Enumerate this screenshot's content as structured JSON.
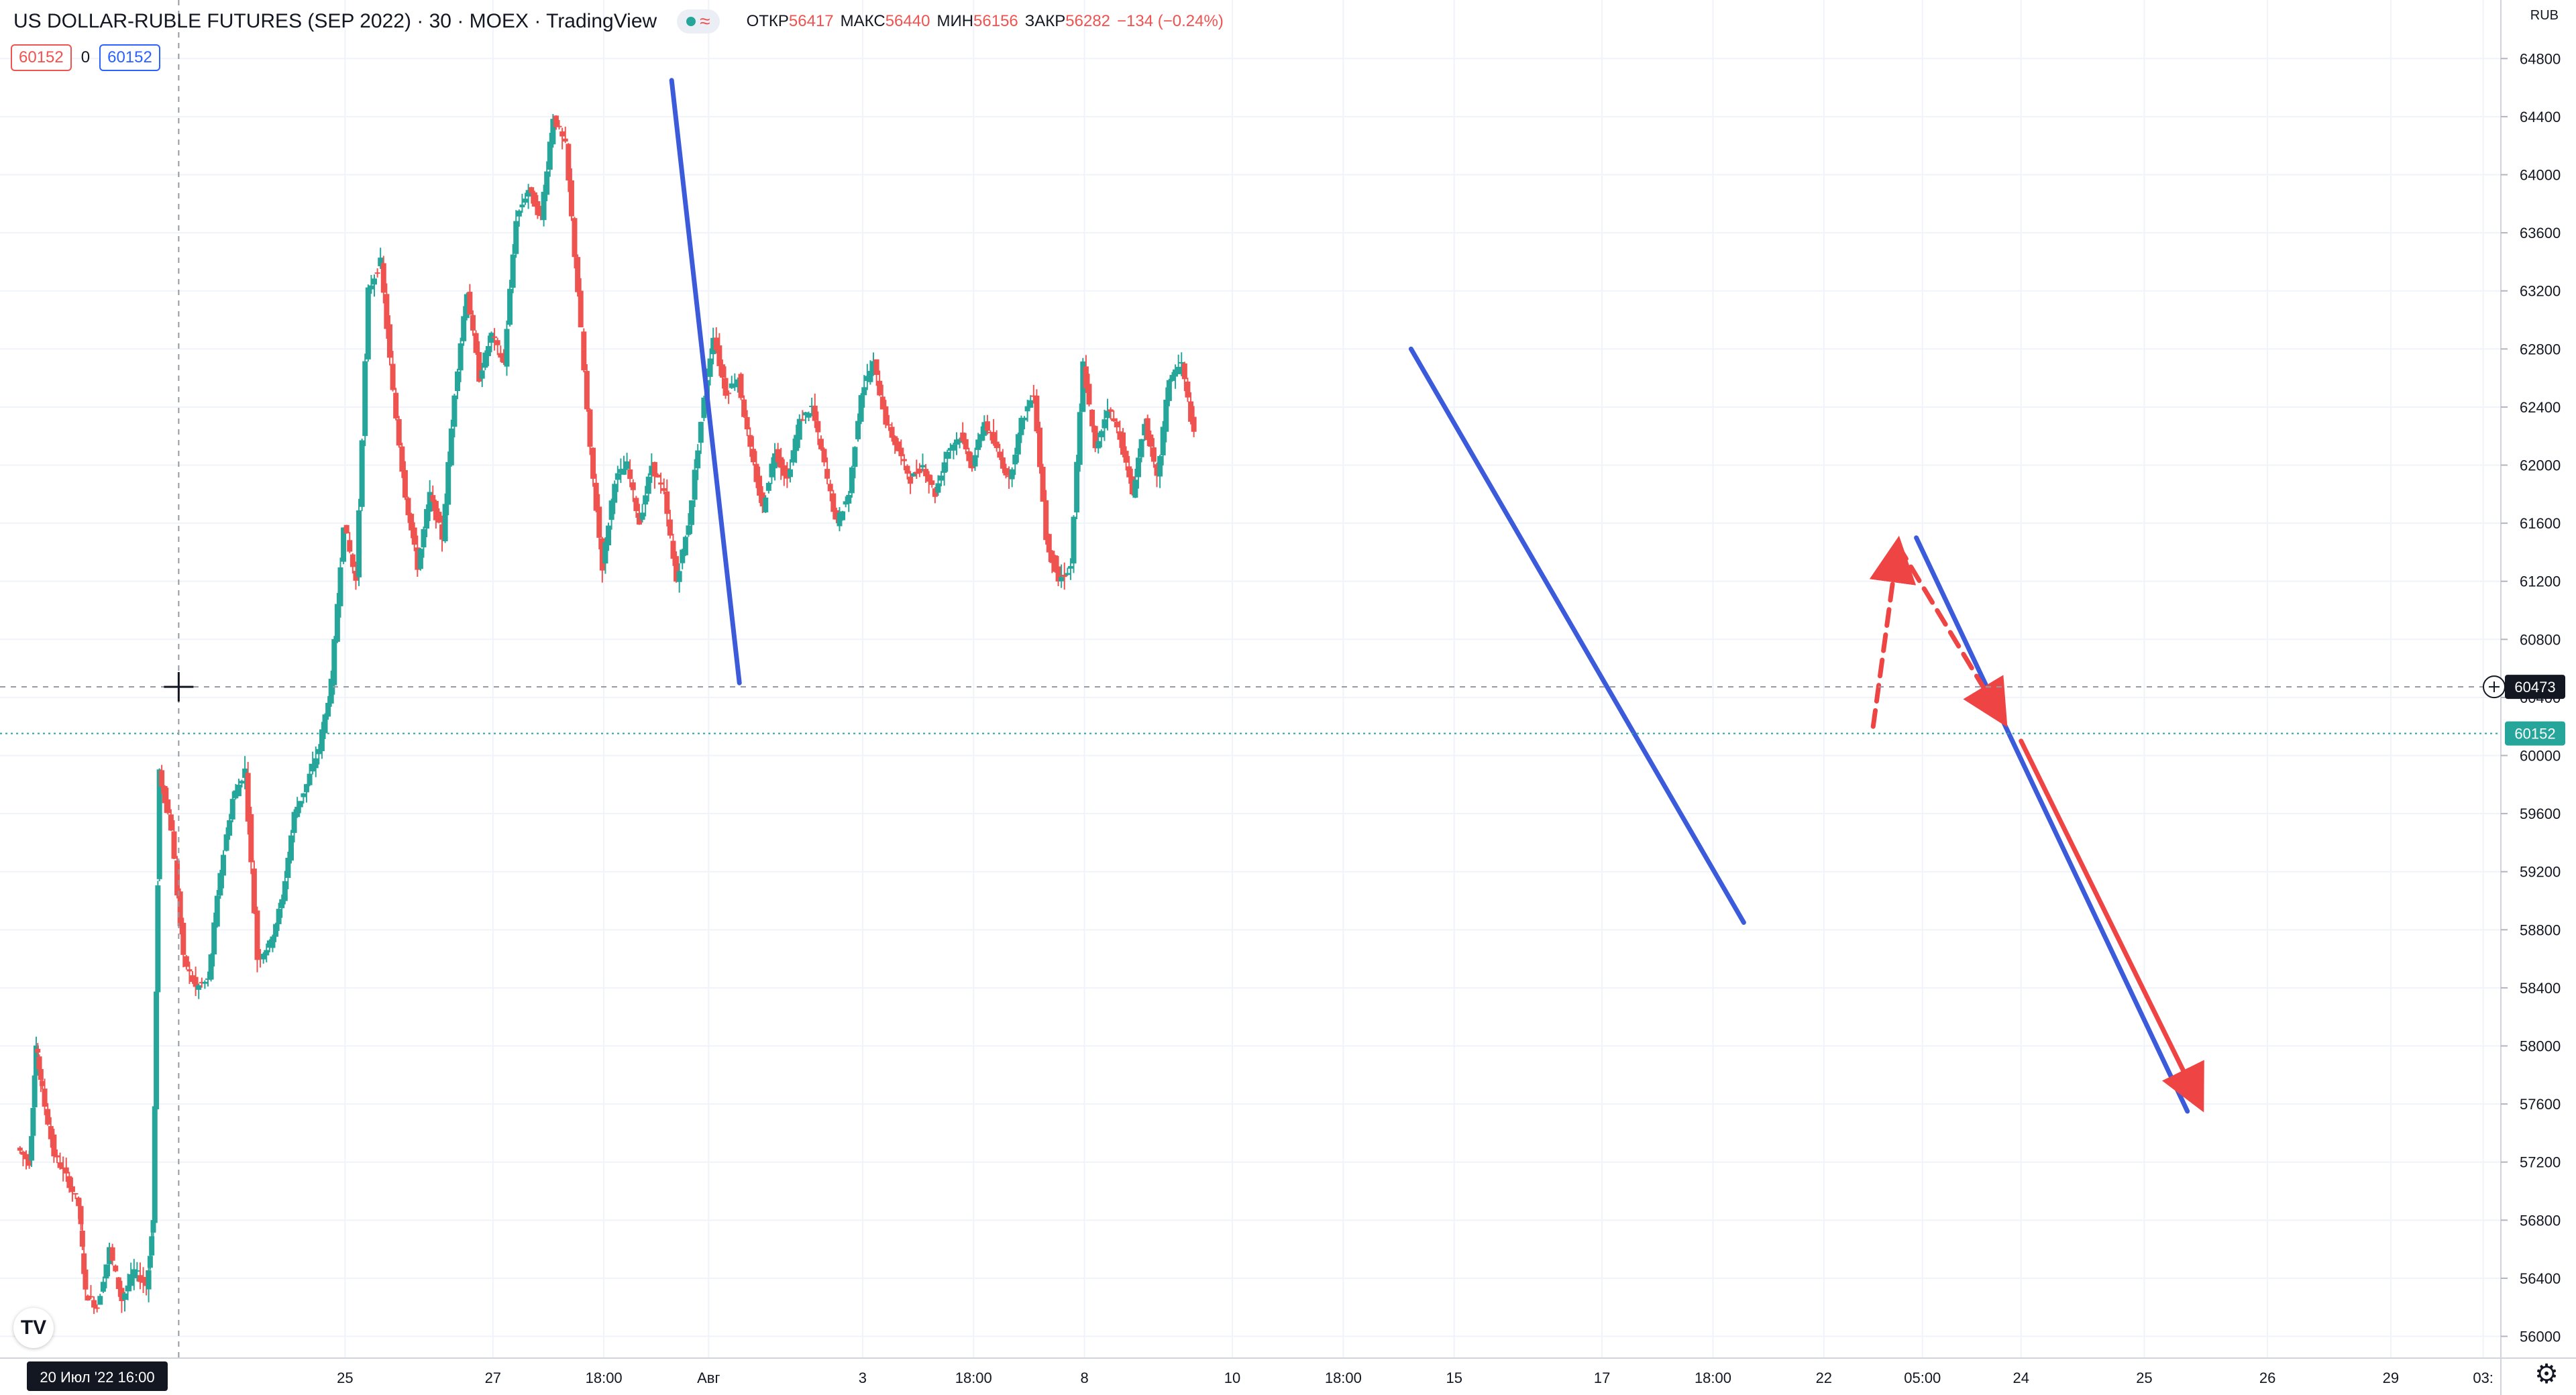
{
  "header": {
    "title": "US DOLLAR-RUBLE FUTURES (SEP 2022) · 30 · MOEX · TradingView",
    "pill_wave": "≈",
    "ohlc": [
      {
        "key": "ОТКР",
        "value": "56417"
      },
      {
        "key": "МАКС",
        "value": "56440"
      },
      {
        "key": "МИН",
        "value": "56156"
      },
      {
        "key": "ЗАКР",
        "value": "56282"
      },
      {
        "key": "",
        "value": "−134 (−0.24%)"
      }
    ],
    "bid": "60152",
    "spread": "0",
    "ask": "60152"
  },
  "currency": "RUB",
  "logo": "TV",
  "settings_icon": "gear-icon",
  "colors": {
    "up": "#26a69a",
    "down": "#ef5350",
    "trend_blue": "#3b5bdb",
    "forecast_red": "#ef4444",
    "grid": "#f0f3fa",
    "crosshair": "#9598a1"
  },
  "chart_data": {
    "type": "candlestick",
    "interval": "30",
    "ylim": [
      55850,
      65000
    ],
    "y_ticks": [
      56000,
      56400,
      56800,
      57200,
      57600,
      58000,
      58400,
      58800,
      59200,
      59600,
      60000,
      60400,
      60800,
      61200,
      61600,
      62000,
      62400,
      62800,
      63200,
      63600,
      64000,
      64400,
      64800
    ],
    "x_ticks": [
      {
        "label": "25",
        "x": 0.25
      },
      {
        "label": "27",
        "x": 1.45
      },
      {
        "label": "18:00",
        "x": 2.35
      },
      {
        "label": "Авг",
        "x": 3.2
      },
      {
        "label": "3",
        "x": 4.45
      },
      {
        "label": "18:00",
        "x": 5.35
      },
      {
        "label": "8",
        "x": 6.25
      },
      {
        "label": "10",
        "x": 7.45
      },
      {
        "label": "18:00",
        "x": 8.35
      },
      {
        "label": "15",
        "x": 9.25
      },
      {
        "label": "17",
        "x": 10.45
      },
      {
        "label": "18:00",
        "x": 11.35
      },
      {
        "label": "22",
        "x": 12.25
      },
      {
        "label": "05:00",
        "x": 13.05
      },
      {
        "label": "24",
        "x": 13.85
      },
      {
        "label": "25",
        "x": 14.85
      },
      {
        "label": "26",
        "x": 15.85
      },
      {
        "label": "29",
        "x": 16.85
      },
      {
        "label": "03:",
        "x": 17.6
      }
    ],
    "crosshair": {
      "price": 60473,
      "price_label": "60473",
      "time_label": "20 Июл '22  16:00",
      "x": -1.1
    },
    "last_price": {
      "price": 60152,
      "label": "60152"
    },
    "path": [
      [
        -2.4,
        57300
      ],
      [
        -2.3,
        57200
      ],
      [
        -2.25,
        58000
      ],
      [
        -2.2,
        57700
      ],
      [
        -2.1,
        57250
      ],
      [
        -2.0,
        57100
      ],
      [
        -1.9,
        56900
      ],
      [
        -1.85,
        56300
      ],
      [
        -1.75,
        56200
      ],
      [
        -1.65,
        56600
      ],
      [
        -1.55,
        56250
      ],
      [
        -1.45,
        56450
      ],
      [
        -1.35,
        56350
      ],
      [
        -1.3,
        56800
      ],
      [
        -1.25,
        59900
      ],
      [
        -1.15,
        59500
      ],
      [
        -1.05,
        58600
      ],
      [
        -0.95,
        58400
      ],
      [
        -0.85,
        58450
      ],
      [
        -0.75,
        59200
      ],
      [
        -0.65,
        59700
      ],
      [
        -0.55,
        59900
      ],
      [
        -0.45,
        58600
      ],
      [
        -0.35,
        58700
      ],
      [
        -0.25,
        59000
      ],
      [
        -0.15,
        59600
      ],
      [
        -0.05,
        59800
      ],
      [
        0.05,
        60050
      ],
      [
        0.15,
        60500
      ],
      [
        0.25,
        61600
      ],
      [
        0.35,
        61200
      ],
      [
        0.45,
        63200
      ],
      [
        0.55,
        63400
      ],
      [
        0.65,
        62500
      ],
      [
        0.75,
        61800
      ],
      [
        0.85,
        61300
      ],
      [
        0.95,
        61800
      ],
      [
        1.05,
        61500
      ],
      [
        1.15,
        62500
      ],
      [
        1.25,
        63200
      ],
      [
        1.35,
        62600
      ],
      [
        1.45,
        62900
      ],
      [
        1.55,
        62700
      ],
      [
        1.65,
        63700
      ],
      [
        1.75,
        63900
      ],
      [
        1.85,
        63700
      ],
      [
        1.95,
        64400
      ],
      [
        2.05,
        64200
      ],
      [
        2.15,
        63200
      ],
      [
        2.25,
        62100
      ],
      [
        2.35,
        61300
      ],
      [
        2.45,
        61900
      ],
      [
        2.55,
        62000
      ],
      [
        2.65,
        61600
      ],
      [
        2.75,
        62000
      ],
      [
        2.85,
        61800
      ],
      [
        2.95,
        61200
      ],
      [
        3.05,
        61600
      ],
      [
        3.15,
        62300
      ],
      [
        3.25,
        62900
      ],
      [
        3.35,
        62500
      ],
      [
        3.45,
        62600
      ],
      [
        3.55,
        62100
      ],
      [
        3.65,
        61700
      ],
      [
        3.75,
        62100
      ],
      [
        3.85,
        61900
      ],
      [
        3.95,
        62300
      ],
      [
        4.05,
        62400
      ],
      [
        4.15,
        62000
      ],
      [
        4.25,
        61600
      ],
      [
        4.35,
        61800
      ],
      [
        4.45,
        62500
      ],
      [
        4.55,
        62700
      ],
      [
        4.65,
        62300
      ],
      [
        4.75,
        62100
      ],
      [
        4.85,
        61900
      ],
      [
        4.95,
        62000
      ],
      [
        5.05,
        61800
      ],
      [
        5.15,
        62100
      ],
      [
        5.25,
        62200
      ],
      [
        5.35,
        62000
      ],
      [
        5.45,
        62300
      ],
      [
        5.55,
        62100
      ],
      [
        5.65,
        61900
      ],
      [
        5.75,
        62300
      ],
      [
        5.85,
        62500
      ],
      [
        5.95,
        61500
      ],
      [
        6.05,
        61200
      ],
      [
        6.15,
        61300
      ],
      [
        6.25,
        62700
      ],
      [
        6.35,
        62100
      ],
      [
        6.45,
        62400
      ],
      [
        6.55,
        62200
      ],
      [
        6.65,
        61800
      ],
      [
        6.75,
        62300
      ],
      [
        6.85,
        61900
      ],
      [
        6.95,
        62600
      ],
      [
        7.05,
        62700
      ],
      [
        7.15,
        62200
      ]
    ],
    "trendlines": [
      {
        "from": [
          2.9,
          64650
        ],
        "to": [
          3.45,
          60500
        ],
        "color": "#3b5bdb",
        "style": "solid"
      },
      {
        "from": [
          8.9,
          62800
        ],
        "to": [
          11.6,
          58850
        ],
        "color": "#3b5bdb",
        "style": "solid"
      },
      {
        "from": [
          13.0,
          61500
        ],
        "to": [
          15.2,
          57550
        ],
        "color": "#3b5bdb",
        "style": "solid"
      },
      {
        "from": [
          13.85,
          60100
        ],
        "to": [
          15.3,
          57600
        ],
        "color": "#ef4444",
        "style": "solid-arrow"
      },
      {
        "from": [
          12.65,
          60200
        ],
        "to": [
          12.85,
          61450
        ],
        "color": "#ef4444",
        "style": "dashed-arrow"
      },
      {
        "from": [
          12.85,
          61450
        ],
        "to": [
          13.7,
          60250
        ],
        "color": "#ef4444",
        "style": "dashed-arrow"
      }
    ]
  }
}
